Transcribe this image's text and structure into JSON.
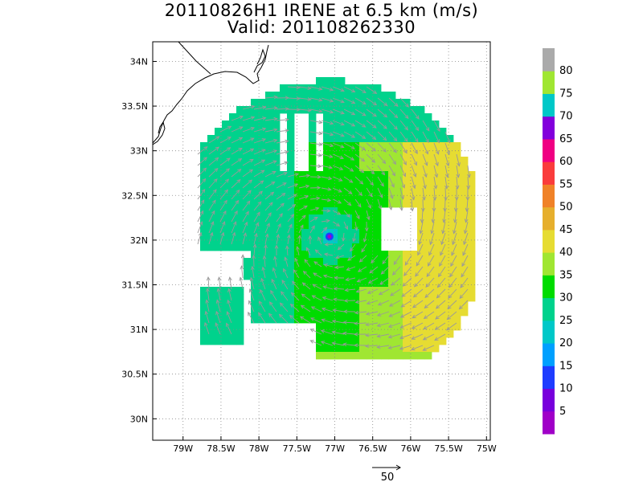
{
  "title_line1": "20110826H1 IRENE at 6.5 km (m/s)",
  "title_line2": "Valid: 201108262330",
  "map": {
    "lon_ticks": [
      "79W",
      "78.5W",
      "78W",
      "77.5W",
      "77W",
      "76.5W",
      "76W",
      "75.5W",
      "75W"
    ],
    "lat_ticks": [
      "34N",
      "33.5N",
      "33N",
      "32.5N",
      "32N",
      "31.5N",
      "31N",
      "30.5N",
      "30N"
    ],
    "lon_range": [
      -79.4,
      -74.95
    ],
    "lat_range": [
      29.76,
      34.22
    ],
    "storm_center": {
      "lon": -77.07,
      "lat": 32.04
    },
    "grid": true
  },
  "colorbar": {
    "levels": [
      5,
      10,
      15,
      20,
      25,
      30,
      35,
      40,
      45,
      50,
      55,
      60,
      65,
      70,
      75,
      80
    ],
    "colors": [
      "#a000c8",
      "#7800dc",
      "#1e3cff",
      "#00a0ff",
      "#00c8c8",
      "#00d28c",
      "#00dc00",
      "#a0e632",
      "#e6dc32",
      "#e6af2d",
      "#f08228",
      "#fa3c3c",
      "#f00082",
      "#8200dc",
      "#00c8c8",
      "#a0e632",
      "#aaaaaa"
    ]
  },
  "reference_vector": {
    "label": "50"
  },
  "colors": {
    "arrow": "#999999",
    "coast": "#000000",
    "grid": "#888888"
  }
}
